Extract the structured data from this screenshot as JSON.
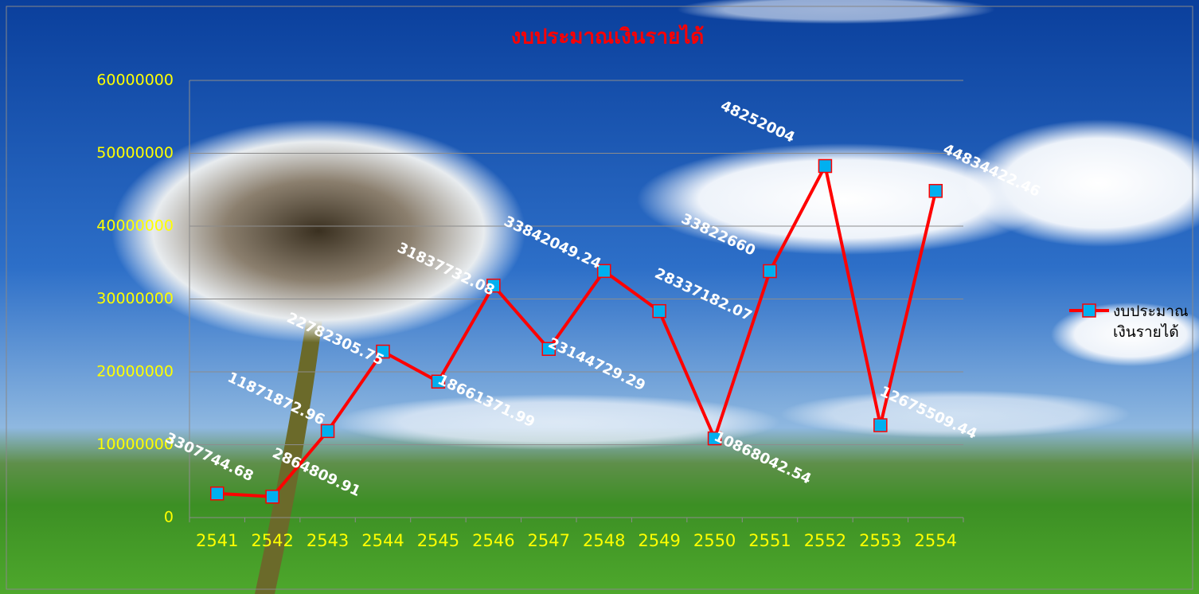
{
  "chart_data": {
    "type": "line",
    "title": "งบประมาณเงินรายได้",
    "categories": [
      "2541",
      "2542",
      "2543",
      "2544",
      "2545",
      "2546",
      "2547",
      "2548",
      "2549",
      "2550",
      "2551",
      "2552",
      "2553",
      "2554"
    ],
    "series": [
      {
        "name": "งบประมาณเงินรายได้",
        "color": "#ff0000",
        "marker_color": "#00b0f0",
        "values": [
          3307744.68,
          2864809.91,
          11871872.96,
          22782305.75,
          18661371.99,
          31837732.08,
          23144729.29,
          33842049.24,
          28337182.07,
          10868042.54,
          33822660,
          48252004,
          12675509.44,
          44834422.46
        ]
      }
    ],
    "ylim": [
      0,
      60000000
    ],
    "yticks": [
      0,
      10000000,
      20000000,
      30000000,
      40000000,
      50000000,
      60000000
    ],
    "grid": true,
    "legend": "right"
  }
}
